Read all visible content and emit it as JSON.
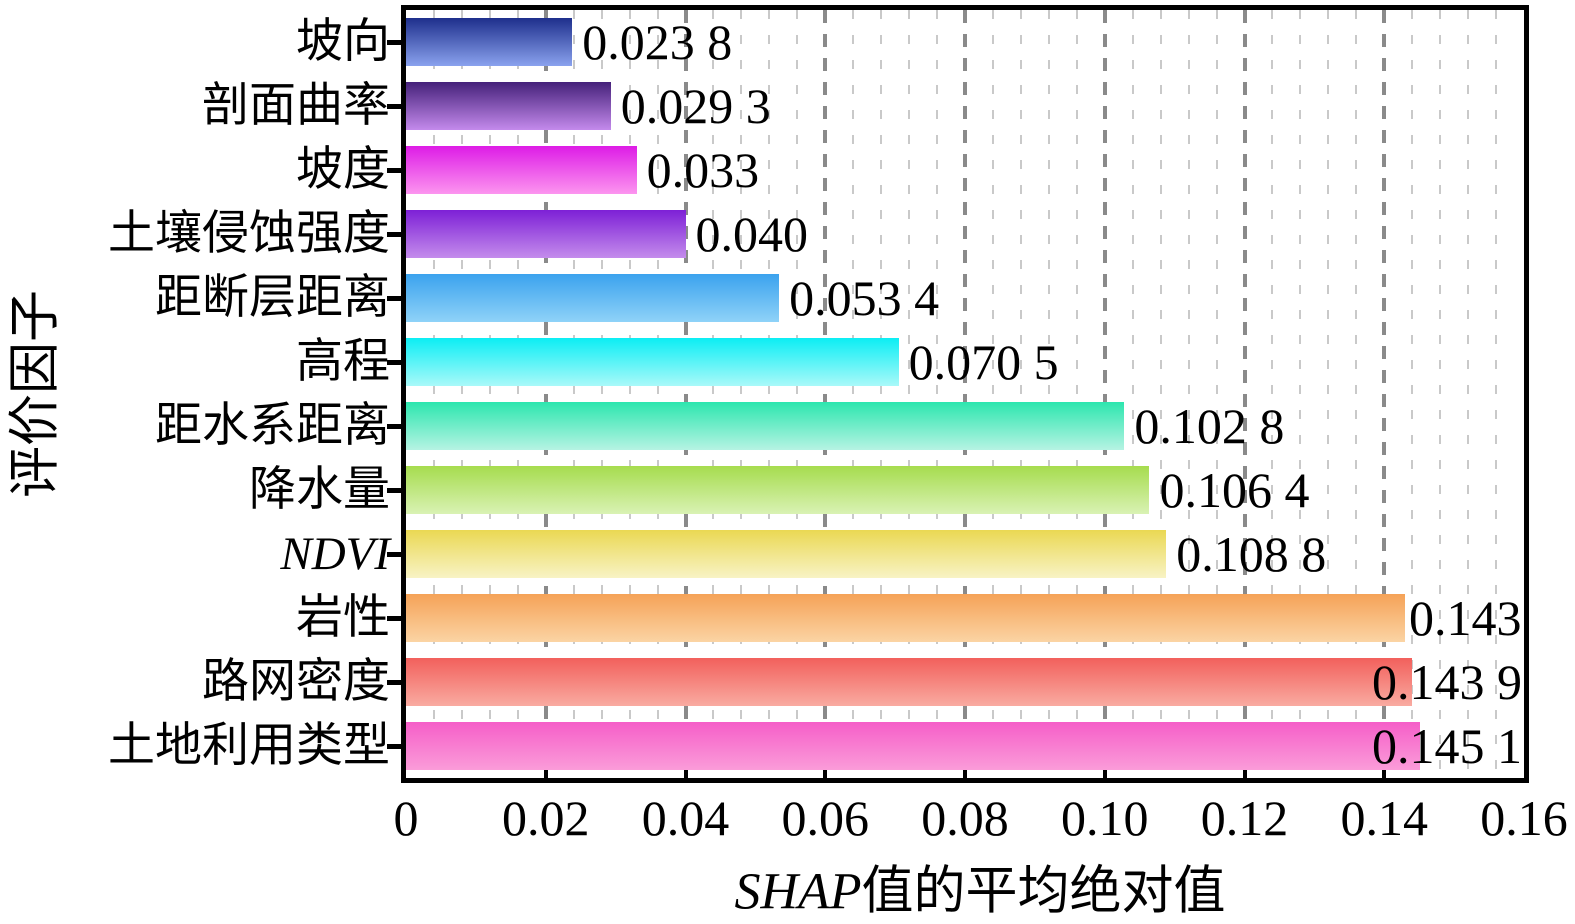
{
  "figure": {
    "y_axis_title": "评价因子",
    "x_axis_title_italic": "SHAP",
    "x_axis_title_rest": "值的平均绝对值"
  },
  "chart_data": {
    "type": "bar",
    "orientation": "horizontal",
    "title": "",
    "xlabel": "SHAP值的平均绝对值",
    "ylabel": "评价因子",
    "xlim": [
      0,
      0.16
    ],
    "x_major_tick_values": [
      0,
      0.02,
      0.04,
      0.06,
      0.08,
      0.1,
      0.12,
      0.14,
      0.16
    ],
    "x_tick_labels": [
      "0",
      "0.02",
      "0.04",
      "0.06",
      "0.08",
      "0.10",
      "0.12",
      "0.14",
      "0.16"
    ],
    "x_minor_step": 0.004,
    "grid": "vertical-dashed, minor every 0.004, major every 0.02",
    "legend": "none",
    "categories": [
      "坡向",
      "剖面曲率",
      "坡度",
      "土壤侵蚀强度",
      "距断层距离",
      "高程",
      "距水系距离",
      "降水量",
      "NDVI",
      "岩性",
      "路网密度",
      "土地利用类型"
    ],
    "italic_flags": [
      false,
      false,
      false,
      false,
      false,
      false,
      false,
      false,
      true,
      false,
      false,
      false
    ],
    "values": [
      0.0238,
      0.0293,
      0.033,
      0.04,
      0.0534,
      0.0705,
      0.1028,
      0.1064,
      0.1088,
      0.143,
      0.1439,
      0.1451
    ],
    "value_labels": [
      "0.023 8",
      "0.029 3",
      "0.033",
      "0.040",
      "0.053 4",
      "0.070 5",
      "0.102 8",
      "0.106 4",
      "0.108 8",
      "0.143",
      "0.143 9",
      "0.145 1"
    ],
    "bar_gradients": [
      {
        "top": "#1e2f8c",
        "bottom": "#8aa2ee"
      },
      {
        "top": "#45217a",
        "bottom": "#c48aec"
      },
      {
        "top": "#dd1ce6",
        "bottom": "#fc95ef"
      },
      {
        "top": "#7d20d6",
        "bottom": "#c48cec"
      },
      {
        "top": "#3ba2ee",
        "bottom": "#8fd2f8"
      },
      {
        "top": "#0ceef4",
        "bottom": "#a9f9f9"
      },
      {
        "top": "#2ce6ae",
        "bottom": "#b6f3e3"
      },
      {
        "top": "#a6dc4e",
        "bottom": "#d9f2b4"
      },
      {
        "top": "#ead853",
        "bottom": "#f8f3c5"
      },
      {
        "top": "#f5a257",
        "bottom": "#fbd4a4"
      },
      {
        "top": "#f2605c",
        "bottom": "#f9aba1"
      },
      {
        "top": "#f55ec8",
        "bottom": "#fb9cd9"
      }
    ],
    "grid_major_color": "#8a8a8a",
    "grid_minor_color": "#c9c9c9",
    "axis_frame_color": "#000000"
  }
}
